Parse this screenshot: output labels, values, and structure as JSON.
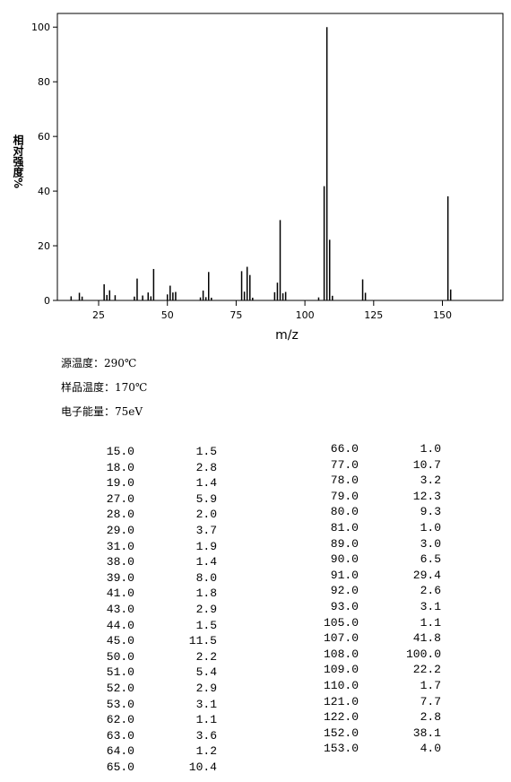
{
  "chart_data": {
    "type": "bar",
    "x_label": "m/z",
    "y_label": "相对强度%",
    "x": [
      15,
      18,
      19,
      27,
      28,
      29,
      31,
      38,
      39,
      41,
      43,
      44,
      45,
      50,
      51,
      52,
      53,
      62,
      63,
      64,
      65,
      66,
      77,
      78,
      79,
      80,
      81,
      89,
      90,
      91,
      92,
      93,
      105,
      107,
      108,
      109,
      110,
      121,
      122,
      152,
      153
    ],
    "values": [
      1.5,
      2.8,
      1.4,
      5.9,
      2.0,
      3.7,
      1.9,
      1.4,
      8.0,
      1.8,
      2.9,
      1.5,
      11.5,
      2.2,
      5.4,
      2.9,
      3.1,
      1.1,
      3.6,
      1.2,
      10.4,
      1.0,
      10.7,
      3.2,
      12.3,
      9.3,
      1.0,
      3.0,
      6.5,
      29.4,
      2.6,
      3.1,
      1.1,
      41.8,
      100.0,
      22.2,
      1.7,
      7.7,
      2.8,
      38.1,
      4.0
    ],
    "color": "#000000",
    "xlim": [
      10,
      172
    ],
    "xticks": [
      25,
      50,
      75,
      100,
      125,
      150
    ],
    "ylim": [
      0,
      105
    ],
    "yticks": [
      0,
      20,
      40,
      60,
      80,
      100
    ]
  },
  "conditions": [
    "源温度：290℃",
    "样品温度：170℃",
    "电子能量：75eV"
  ],
  "table": {
    "rows": [
      [
        "15.0",
        "1.5"
      ],
      [
        "18.0",
        "2.8"
      ],
      [
        "19.0",
        "1.4"
      ],
      [
        "27.0",
        "5.9"
      ],
      [
        "28.0",
        "2.0"
      ],
      [
        "29.0",
        "3.7"
      ],
      [
        "31.0",
        "1.9"
      ],
      [
        "38.0",
        "1.4"
      ],
      [
        "39.0",
        "8.0"
      ],
      [
        "41.0",
        "1.8"
      ],
      [
        "43.0",
        "2.9"
      ],
      [
        "44.0",
        "1.5"
      ],
      [
        "45.0",
        "11.5"
      ],
      [
        "50.0",
        "2.2"
      ],
      [
        "51.0",
        "5.4"
      ],
      [
        "52.0",
        "2.9"
      ],
      [
        "53.0",
        "3.1"
      ],
      [
        "62.0",
        "1.1"
      ],
      [
        "63.0",
        "3.6"
      ],
      [
        "64.0",
        "1.2"
      ],
      [
        "65.0",
        "10.4"
      ],
      [
        "66.0",
        "1.0"
      ],
      [
        "77.0",
        "10.7"
      ],
      [
        "78.0",
        "3.2"
      ],
      [
        "79.0",
        "12.3"
      ],
      [
        "80.0",
        "9.3"
      ],
      [
        "81.0",
        "1.0"
      ],
      [
        "89.0",
        "3.0"
      ],
      [
        "90.0",
        "6.5"
      ],
      [
        "91.0",
        "29.4"
      ],
      [
        "92.0",
        "2.6"
      ],
      [
        "93.0",
        "3.1"
      ],
      [
        "105.0",
        "1.1"
      ],
      [
        "107.0",
        "41.8"
      ],
      [
        "108.0",
        "100.0"
      ],
      [
        "109.0",
        "22.2"
      ],
      [
        "110.0",
        "1.7"
      ],
      [
        "121.0",
        "7.7"
      ],
      [
        "122.0",
        "2.8"
      ],
      [
        "152.0",
        "38.1"
      ],
      [
        "153.0",
        "4.0"
      ]
    ]
  }
}
